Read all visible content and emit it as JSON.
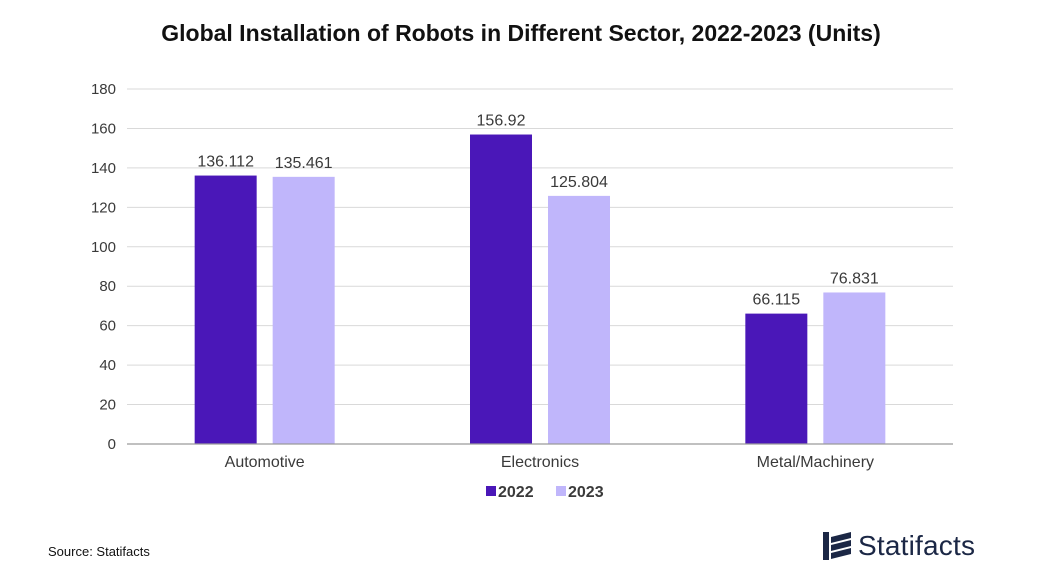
{
  "colors": {
    "series_2022": "#4a17b8",
    "series_2023": "#c0b6fb",
    "grid": "#d9d9d9",
    "axis": "#9a9a9a",
    "text": "#3a3a3a",
    "brand": "#1b2745"
  },
  "chart_data": {
    "type": "bar",
    "title": "Global Installation of Robots in Different Sector, 2022-2023 (Units)",
    "xlabel": "",
    "ylabel": "",
    "categories": [
      "Automotive",
      "Electronics",
      "Metal/Machinery"
    ],
    "series": [
      {
        "name": "2022",
        "values": [
          136.112,
          156.92,
          66.115
        ],
        "labels": [
          "136.112",
          "156.92",
          "66.115"
        ]
      },
      {
        "name": "2023",
        "values": [
          135.461,
          125.804,
          76.831
        ],
        "labels": [
          "135.461",
          "125.804",
          "76.831"
        ]
      }
    ],
    "ylim": [
      0,
      180
    ],
    "yticks": [
      "0",
      "20",
      "40",
      "60",
      "80",
      "100",
      "120",
      "140",
      "160",
      "180"
    ],
    "grid": true,
    "legend_position": "bottom-center"
  },
  "footer": {
    "source": "Source: Statifacts",
    "brand": "Statifacts",
    "brand_icon": "statifacts-logo-icon"
  }
}
